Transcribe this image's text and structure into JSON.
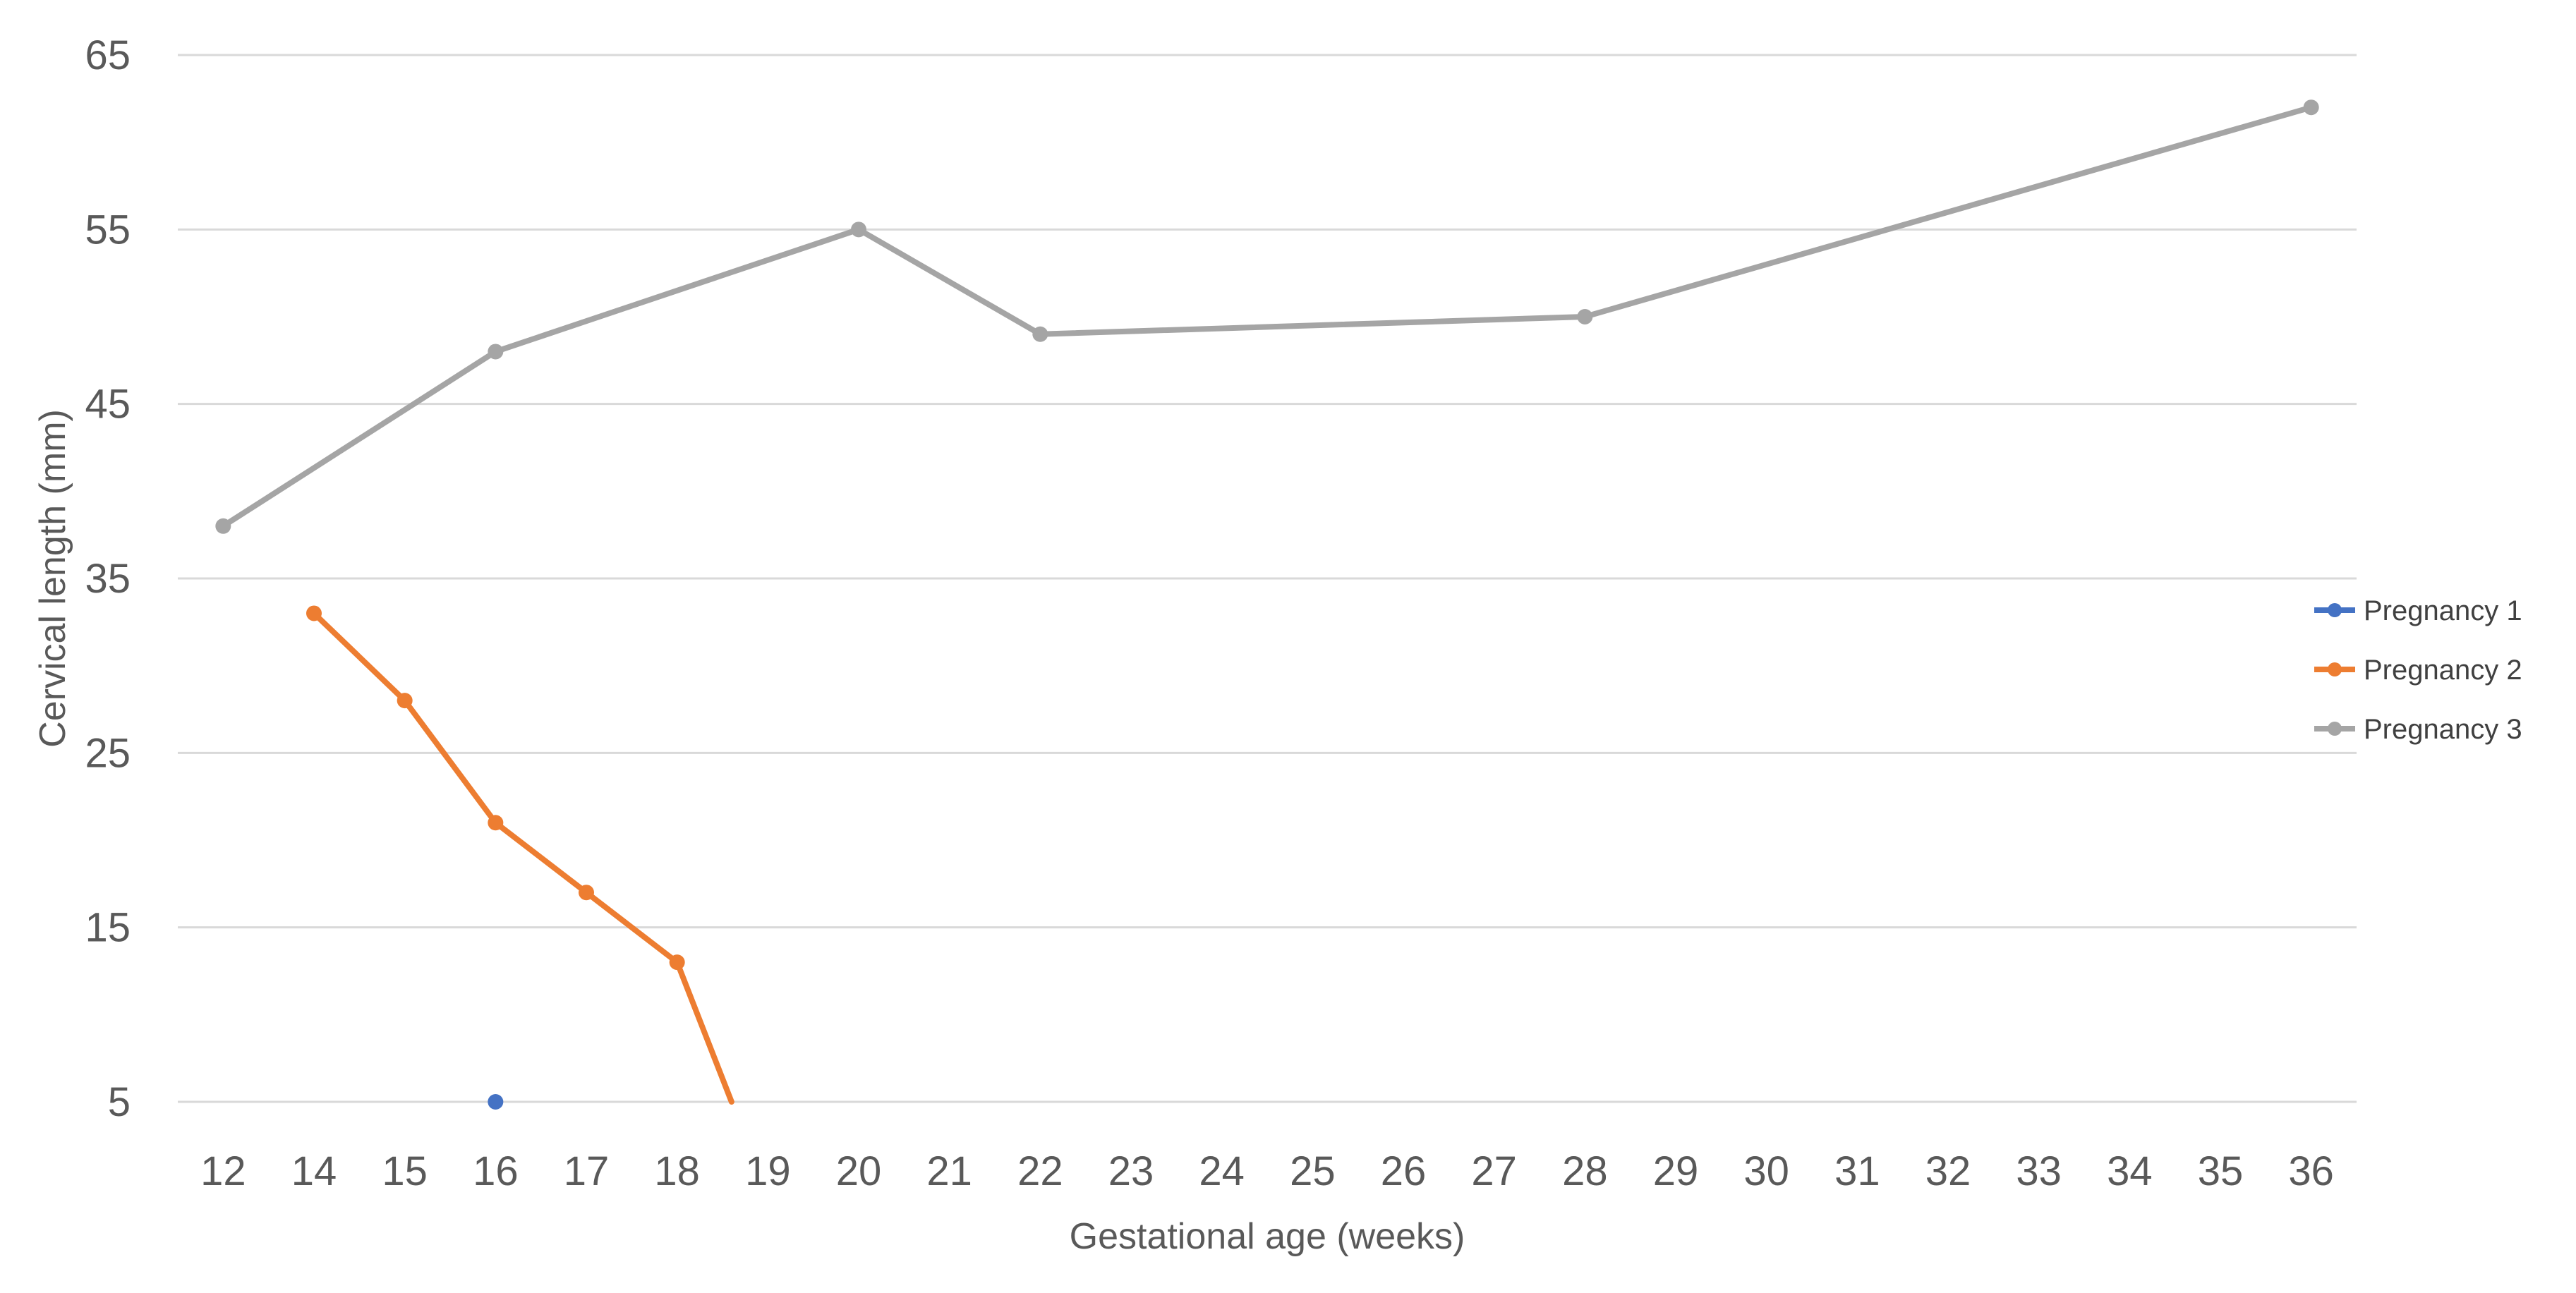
{
  "chart_data": {
    "type": "line",
    "title": "",
    "xlabel": "Gestational age (weeks)",
    "ylabel": "Cervical length (mm)",
    "categories": [
      "12",
      "14",
      "15",
      "16",
      "17",
      "18",
      "19",
      "20",
      "21",
      "22",
      "23",
      "24",
      "25",
      "26",
      "27",
      "28",
      "29",
      "30",
      "31",
      "32",
      "33",
      "34",
      "35",
      "36"
    ],
    "yticks": [
      5,
      15,
      25,
      35,
      45,
      55,
      65
    ],
    "ylim": [
      5,
      65
    ],
    "grid": true,
    "legend_position": "right",
    "series": [
      {
        "name": "Pregnancy 1",
        "color": "#4472C4",
        "points": [
          {
            "x": "16",
            "y": 5
          }
        ]
      },
      {
        "name": "Pregnancy 2",
        "color": "#ED7D31",
        "points": [
          {
            "x": "14",
            "y": 33
          },
          {
            "x": "15",
            "y": 28
          },
          {
            "x": "16",
            "y": 21
          },
          {
            "x": "17",
            "y": 17
          },
          {
            "x": "18",
            "y": 13
          }
        ],
        "trailing_to": {
          "x_between": [
            "18",
            "19"
          ],
          "y": 5
        }
      },
      {
        "name": "Pregnancy 3",
        "color": "#A5A5A5",
        "points": [
          {
            "x": "12",
            "y": 38
          },
          {
            "x": "16",
            "y": 48
          },
          {
            "x": "20",
            "y": 55
          },
          {
            "x": "22",
            "y": 49
          },
          {
            "x": "28",
            "y": 50
          },
          {
            "x": "36",
            "y": 62
          }
        ]
      }
    ]
  }
}
